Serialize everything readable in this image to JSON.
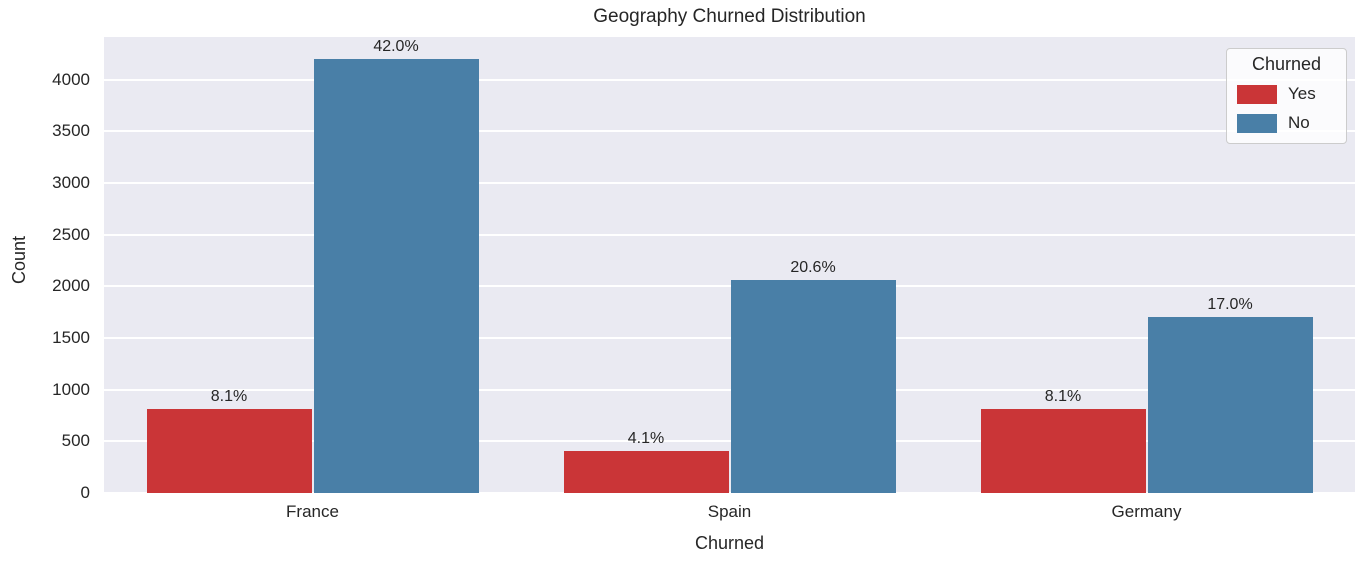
{
  "chart_data": {
    "type": "bar",
    "title": "Geography Churned Distribution",
    "xlabel": "Churned",
    "ylabel": "Count",
    "categories": [
      "France",
      "Spain",
      "Germany"
    ],
    "series": [
      {
        "name": "Yes",
        "color": "#ca3537",
        "values": [
          810,
          410,
          810
        ],
        "labels": [
          "8.1%",
          "4.1%",
          "8.1%"
        ]
      },
      {
        "name": "No",
        "color": "#497fa7",
        "values": [
          4200,
          2060,
          1700
        ],
        "labels": [
          "42.0%",
          "20.6%",
          "17.0%"
        ]
      }
    ],
    "legend": {
      "title": "Churned",
      "position": "upper right"
    },
    "yticks": [
      0,
      500,
      1000,
      1500,
      2000,
      2500,
      3000,
      3500,
      4000
    ],
    "ylim": [
      0,
      4412
    ],
    "grid": true,
    "plot_bg_color": "#eaeaf2",
    "grid_color": "#ffffff",
    "text_color": "#262626"
  }
}
